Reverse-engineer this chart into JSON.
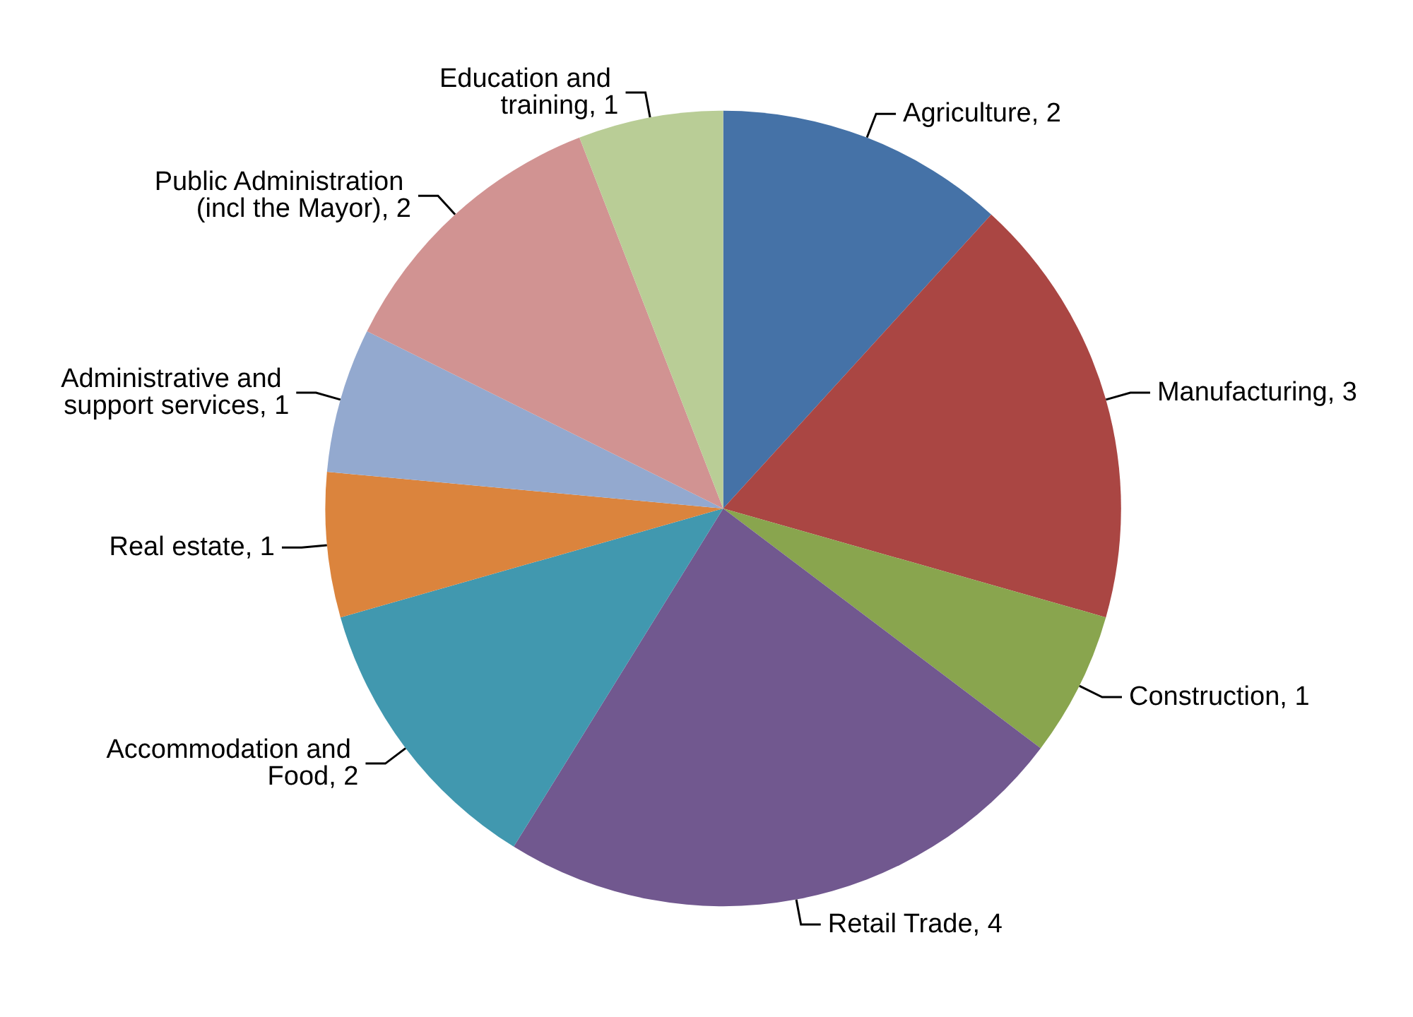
{
  "chart_data": {
    "type": "pie",
    "categories": [
      "Agriculture",
      "Manufacturing",
      "Construction",
      "Retail Trade",
      "Accommodation and Food",
      "Real estate",
      "Administrative and support services",
      "Public Administration (incl the Mayor)",
      "Education and training"
    ],
    "values": [
      2,
      3,
      1,
      4,
      2,
      1,
      1,
      2,
      1
    ],
    "colors": [
      "#4572a7",
      "#aa4643",
      "#89a54e",
      "#71588f",
      "#4198af",
      "#db843d",
      "#93a9cf",
      "#d19392",
      "#b9cd96"
    ],
    "value_labels": [
      ", 2",
      ", 3",
      ", 1",
      ", 4",
      ", 2",
      ", 1",
      ", 1",
      ", 2",
      ", 1"
    ],
    "legend": false
  }
}
